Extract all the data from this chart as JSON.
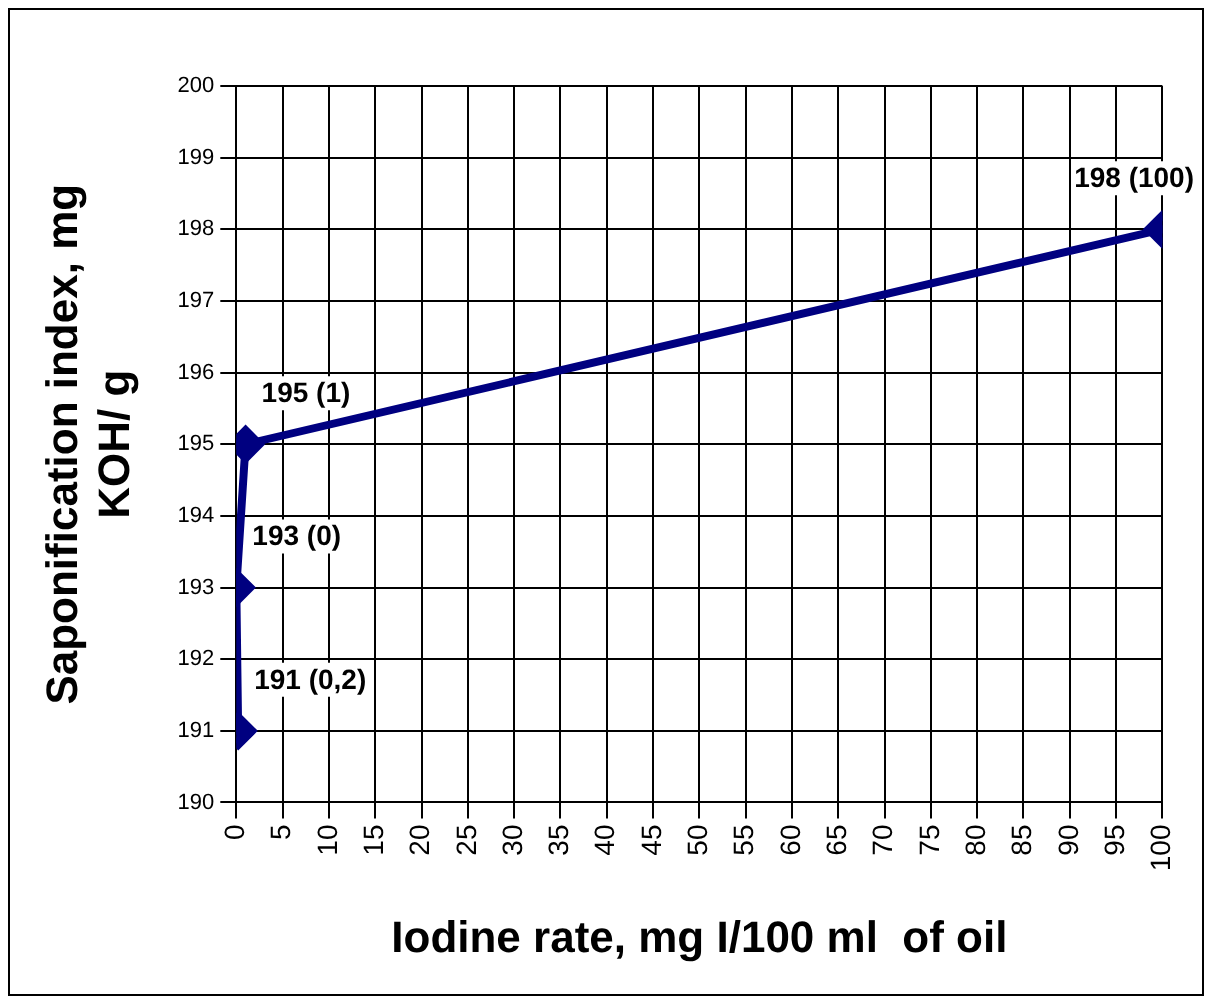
{
  "chart_data": {
    "type": "line",
    "xlabel": "Iodine rate, mg I/100 ml  of oil",
    "ylabel": [
      "Saponification index, mg",
      "KOH/ g"
    ],
    "x": [
      0.2,
      0,
      1,
      100
    ],
    "values": [
      191,
      193,
      195,
      198
    ],
    "color": "#000080",
    "value_labels": [
      "191 (0,2)",
      "193 (0)",
      "195 (1)",
      "198 (100)"
    ],
    "xlim": [
      0,
      100
    ],
    "xticks": [
      0,
      5,
      10,
      15,
      20,
      25,
      30,
      35,
      40,
      45,
      50,
      55,
      60,
      65,
      70,
      75,
      80,
      85,
      90,
      95,
      100
    ],
    "ylim": [
      190,
      200
    ],
    "yticks": [
      190,
      191,
      192,
      193,
      194,
      195,
      196,
      197,
      198,
      199,
      200
    ],
    "grid": true,
    "marker": "diamond",
    "line_style": "solid",
    "legend": false
  }
}
